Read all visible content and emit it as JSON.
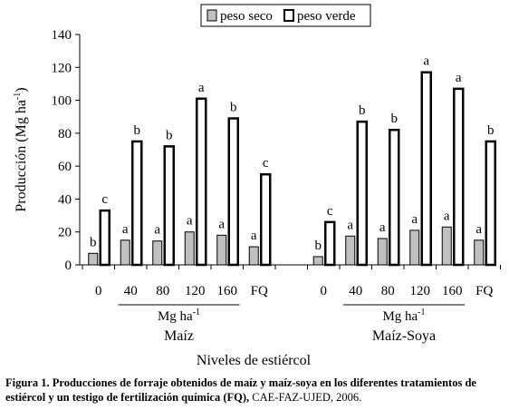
{
  "chart_data": {
    "type": "bar",
    "ylabel_main": "Producción (Mg ha",
    "ylabel_sup": "-1",
    "ylabel_end": ")",
    "xlabel": "Niveles de estiércol",
    "ylim": [
      0,
      140
    ],
    "yticks": [
      "0",
      "20",
      "40",
      "60",
      "80",
      "100",
      "120",
      "140"
    ],
    "legend": {
      "placement": "top-center",
      "items": [
        "peso seco",
        "peso verde"
      ]
    },
    "unit_label_main": "Mg ha",
    "unit_label_sup": "-1",
    "groups": [
      {
        "name": "Maíz",
        "categories": [
          "0",
          "40",
          "80",
          "120",
          "160",
          "FQ"
        ],
        "series": [
          {
            "name": "peso seco",
            "values": [
              7,
              15,
              14.5,
              20,
              18,
              11
            ],
            "letters": [
              "b",
              "a",
              "a",
              "a",
              "a",
              "a"
            ]
          },
          {
            "name": "peso verde",
            "values": [
              33,
              75,
              72,
              101,
              89,
              55
            ],
            "letters": [
              "c",
              "b",
              "b",
              "a",
              "b",
              "c"
            ]
          }
        ]
      },
      {
        "name": "Maíz-Soya",
        "categories": [
          "0",
          "40",
          "80",
          "120",
          "160",
          "FQ"
        ],
        "series": [
          {
            "name": "peso seco",
            "values": [
              5,
              17.5,
              16,
              21,
              23,
              15
            ],
            "letters": [
              "b",
              "a",
              "a",
              "a",
              "a",
              "a"
            ]
          },
          {
            "name": "peso verde",
            "values": [
              26,
              87,
              82,
              117,
              107,
              75
            ],
            "letters": [
              "c",
              "b",
              "b",
              "a",
              "a",
              "b"
            ]
          }
        ]
      }
    ],
    "colors": {
      "peso seco": "#c0c0c0",
      "peso verde": "#ffffff",
      "outline": "#000000"
    }
  },
  "caption": {
    "label": "Figura 1. Producciones de forraje obtenidos de maíz y maíz-soya en los diferentes tratamientos de estiércol y un testigo de fertilización química (FQ),",
    "source": " CAE-FAZ-UJED, 2006."
  }
}
